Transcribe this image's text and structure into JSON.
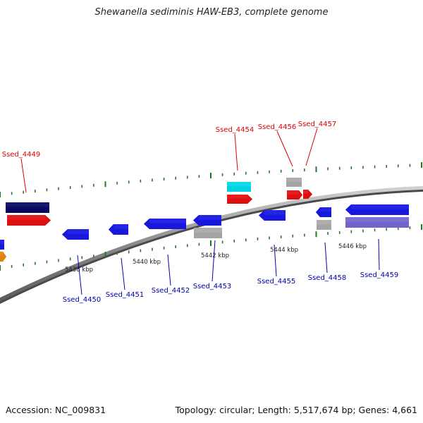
{
  "title": "Shewanella sediminis HAW-EB3, complete genome",
  "footer": {
    "accession": "Accession: NC_009831",
    "summary": "Topology: circular; Length: 5,517,674 bp; Genes: 4,661"
  },
  "colors": {
    "backbone": "#8a8a8a",
    "tick": "#1f7a1f",
    "forward_label": "#dd0000",
    "reverse_label": "#0000aa",
    "axis_label": "#222222"
  },
  "scale_labels": [
    "5438 kbp",
    "5440 kbp",
    "5442 kbp",
    "5444 kbp",
    "5446 kbp"
  ],
  "forward_genes": [
    {
      "label": "Ssed_4449",
      "color": "#ee1111"
    },
    {
      "label": "Ssed_4454",
      "color": "#ee1111"
    },
    {
      "label": "Ssed_4456",
      "color": "#ee1111"
    },
    {
      "label": "Ssed_4457",
      "color": "#ee1111"
    }
  ],
  "reverse_genes": [
    {
      "label": "Ssed_4450",
      "color": "#1a1aee"
    },
    {
      "label": "Ssed_4451",
      "color": "#1a1aee"
    },
    {
      "label": "Ssed_4452",
      "color": "#1a1aee"
    },
    {
      "label": "Ssed_4453",
      "color": "#1a1aee"
    },
    {
      "label": "Ssed_4455",
      "color": "#1a1aee"
    },
    {
      "label": "Ssed_4458",
      "color": "#1a1aee"
    },
    {
      "label": "Ssed_4459",
      "color": "#1a1aee"
    }
  ]
}
